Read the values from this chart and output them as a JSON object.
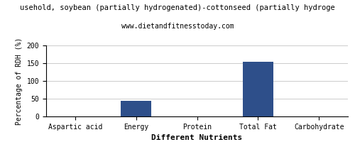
{
  "title": "usehold, soybean (partially hydrogenated)-cottonseed (partially hydroge",
  "subtitle": "www.dietandfitnesstoday.com",
  "xlabel": "Different Nutrients",
  "ylabel": "Percentage of RDH (%)",
  "categories": [
    "Aspartic acid",
    "Energy",
    "Protein",
    "Total Fat",
    "Carbohydrate"
  ],
  "values": [
    0.0,
    45.0,
    0.0,
    155.0,
    0.0
  ],
  "bar_color": "#2e4f8a",
  "ylim": [
    0,
    200
  ],
  "yticks": [
    0,
    50,
    100,
    150,
    200
  ],
  "figsize": [
    5.0,
    2.0
  ],
  "dpi": 100,
  "bg_color": "#ffffff",
  "grid_color": "#cccccc",
  "title_fontsize": 7.5,
  "subtitle_fontsize": 7,
  "xlabel_fontsize": 8,
  "ylabel_fontsize": 7,
  "tick_fontsize": 7
}
